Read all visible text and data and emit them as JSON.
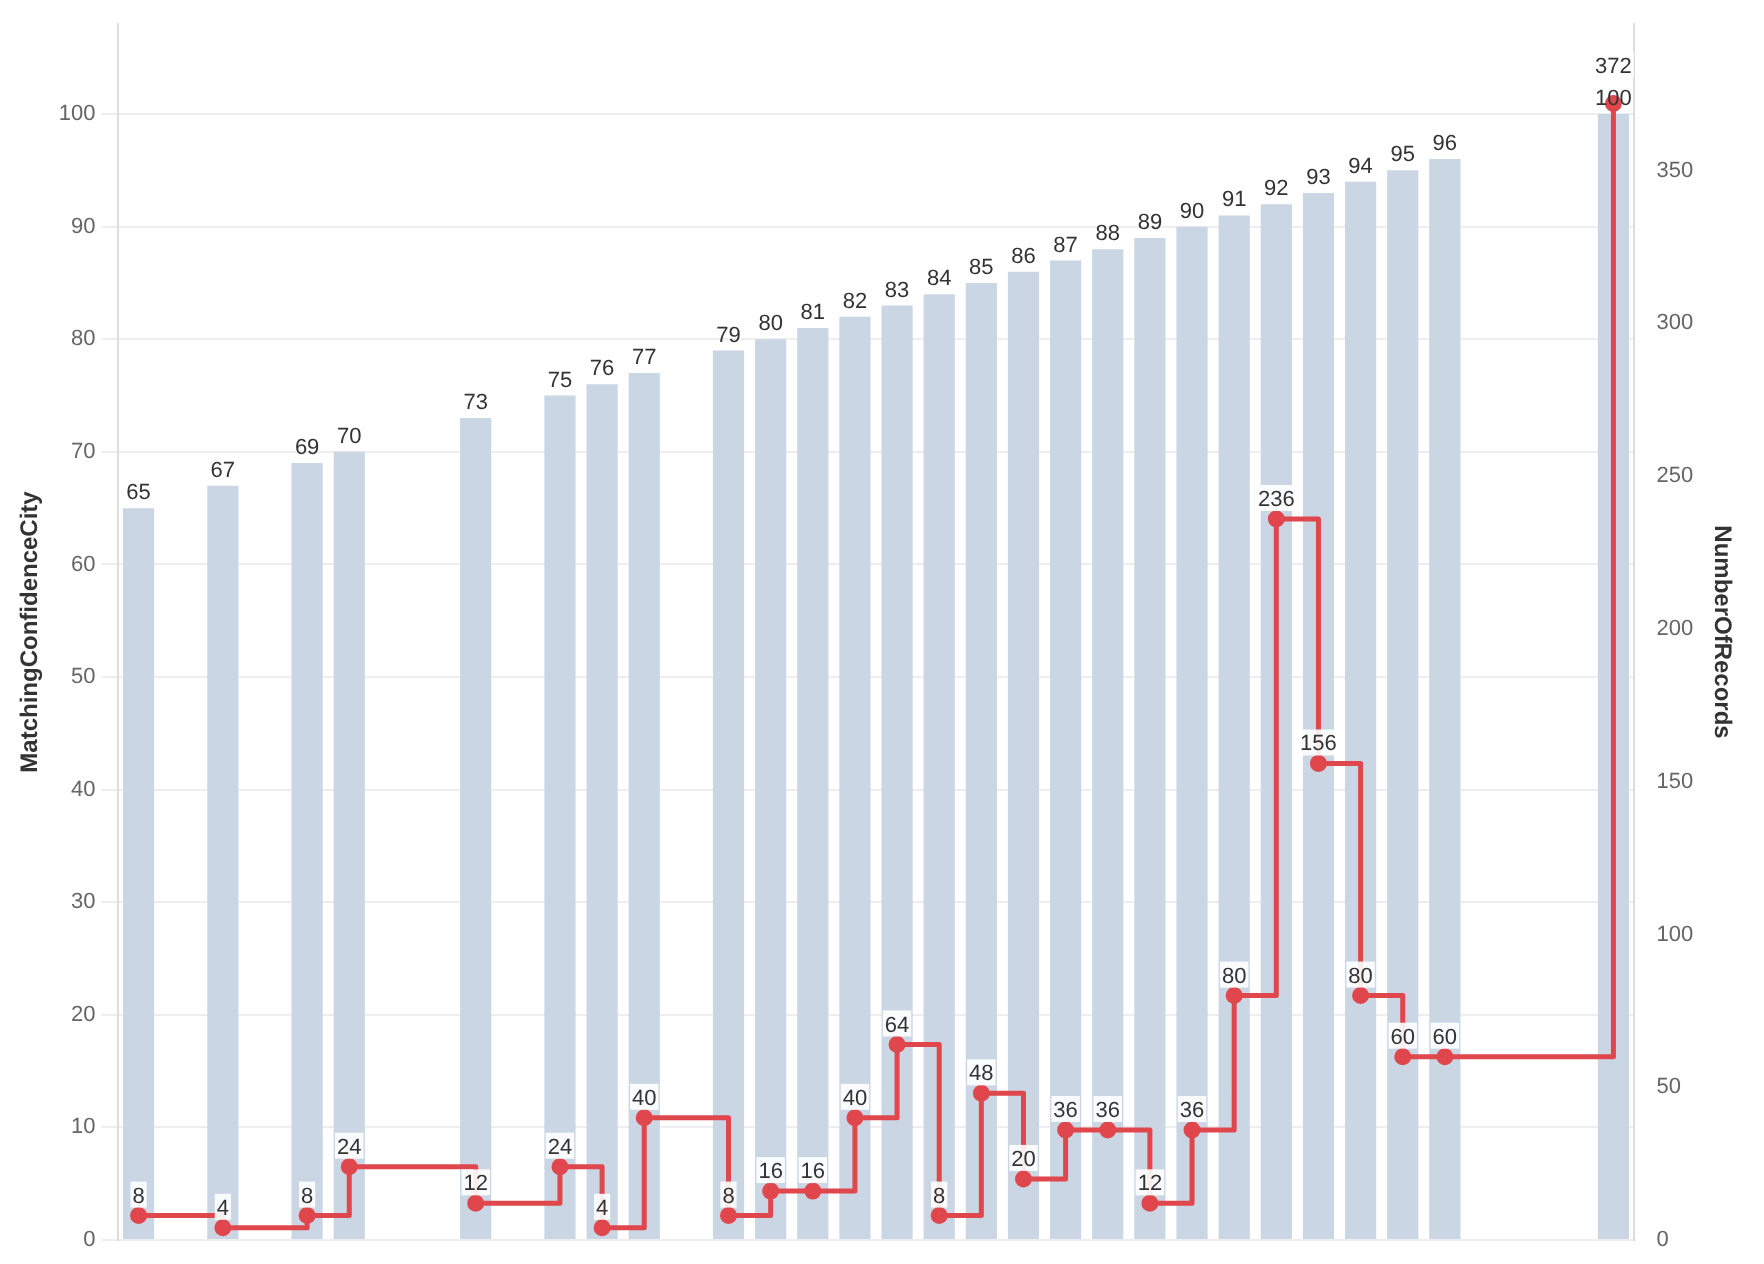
{
  "chart_data": {
    "type": "bar",
    "xlabel": null,
    "ylabel": "MatchingConfidenceCity",
    "y2label": "NumberOfRecords",
    "categories": [
      null,
      null,
      null,
      null,
      null,
      null,
      null,
      null,
      null,
      null,
      null,
      null,
      null,
      null,
      null,
      null,
      null,
      null,
      null,
      null,
      null,
      null,
      null,
      null,
      null,
      null,
      null,
      null,
      null,
      null,
      null,
      null,
      null,
      null,
      null,
      null
    ],
    "series": [
      {
        "color": "#cad6e4",
        "values": [
          65,
          null,
          67,
          null,
          69,
          70,
          null,
          null,
          73,
          null,
          75,
          76,
          77,
          null,
          79,
          80,
          81,
          82,
          83,
          84,
          85,
          86,
          87,
          88,
          89,
          90,
          91,
          92,
          93,
          94,
          95,
          96,
          null,
          null,
          null,
          100
        ]
      },
      {
        "type": "step",
        "axis": "y2",
        "color": "#e0474c",
        "values": [
          8,
          null,
          4,
          null,
          8,
          24,
          null,
          null,
          12,
          null,
          24,
          4,
          40,
          null,
          8,
          16,
          16,
          40,
          64,
          8,
          48,
          20,
          36,
          36,
          12,
          36,
          80,
          236,
          156,
          80,
          60,
          60,
          null,
          null,
          null,
          372
        ]
      }
    ],
    "ylim": [
      0,
      108
    ],
    "yticks": [
      0,
      10,
      20,
      30,
      40,
      50,
      60,
      70,
      80,
      90,
      100
    ],
    "y2lim": [
      0,
      398
    ],
    "y2ticks": [
      0,
      50,
      100,
      150,
      200,
      250,
      300,
      350
    ],
    "tick_labels": "y",
    "grid": "y",
    "legend": false,
    "marker": "circle",
    "data_labels": true
  }
}
